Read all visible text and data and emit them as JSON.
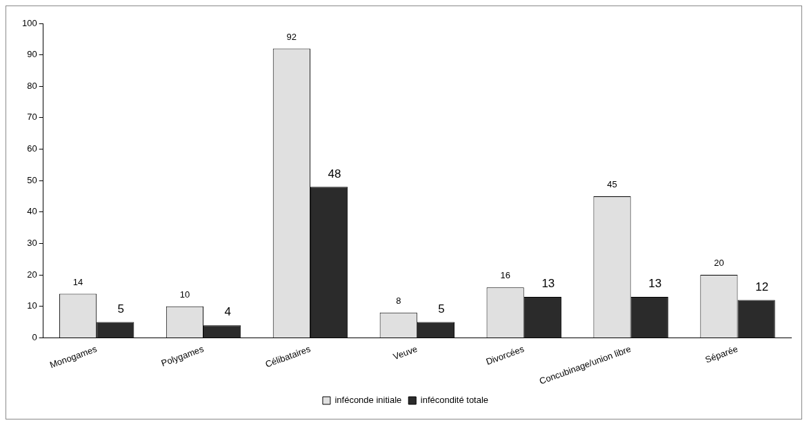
{
  "chart_data": {
    "type": "bar",
    "categories": [
      "Monogames",
      "Polygames",
      "Célibataires",
      "Veuve",
      "Divorcées",
      "Concubinage/union libre",
      "Séparée"
    ],
    "series": [
      {
        "name": "inféconde initiale",
        "color": "#e0e0e0",
        "values": [
          14,
          10,
          92,
          8,
          16,
          45,
          20
        ]
      },
      {
        "name": "infécondité totale",
        "color": "#2b2b2b",
        "values": [
          5,
          4,
          48,
          5,
          13,
          13,
          12
        ]
      }
    ],
    "ylim": [
      0,
      100
    ],
    "yticks": [
      0,
      10,
      20,
      30,
      40,
      50,
      60,
      70,
      80,
      90,
      100
    ],
    "grid": false,
    "legend": "bottom",
    "data_labels": true
  }
}
